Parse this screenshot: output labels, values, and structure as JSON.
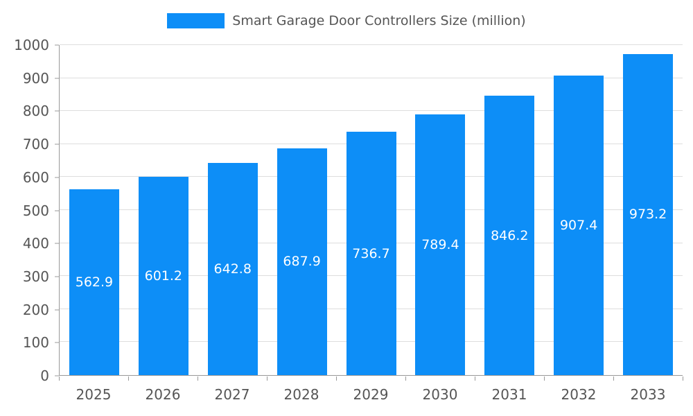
{
  "legend": {
    "label": "Smart Garage Door Controllers Size (million)"
  },
  "chart_data": {
    "type": "bar",
    "title": "Smart Garage Door Controllers Size (million)",
    "categories": [
      "2025",
      "2026",
      "2027",
      "2028",
      "2029",
      "2030",
      "2031",
      "2032",
      "2033"
    ],
    "values": [
      562.9,
      601.2,
      642.8,
      687.9,
      736.7,
      789.4,
      846.2,
      907.4,
      973.2
    ],
    "xlabel": "",
    "ylabel": "",
    "ylim": [
      0,
      1000
    ],
    "y_ticks": [
      0,
      100,
      200,
      300,
      400,
      500,
      600,
      700,
      800,
      900,
      1000
    ],
    "grid": true,
    "legend_position": "top-center",
    "bar_color": "#0d8ef7",
    "value_label_color": "#ffffff",
    "axis_text_color": "#555555",
    "gridline_color": "#dddddd",
    "axis_line_color": "#999999"
  }
}
